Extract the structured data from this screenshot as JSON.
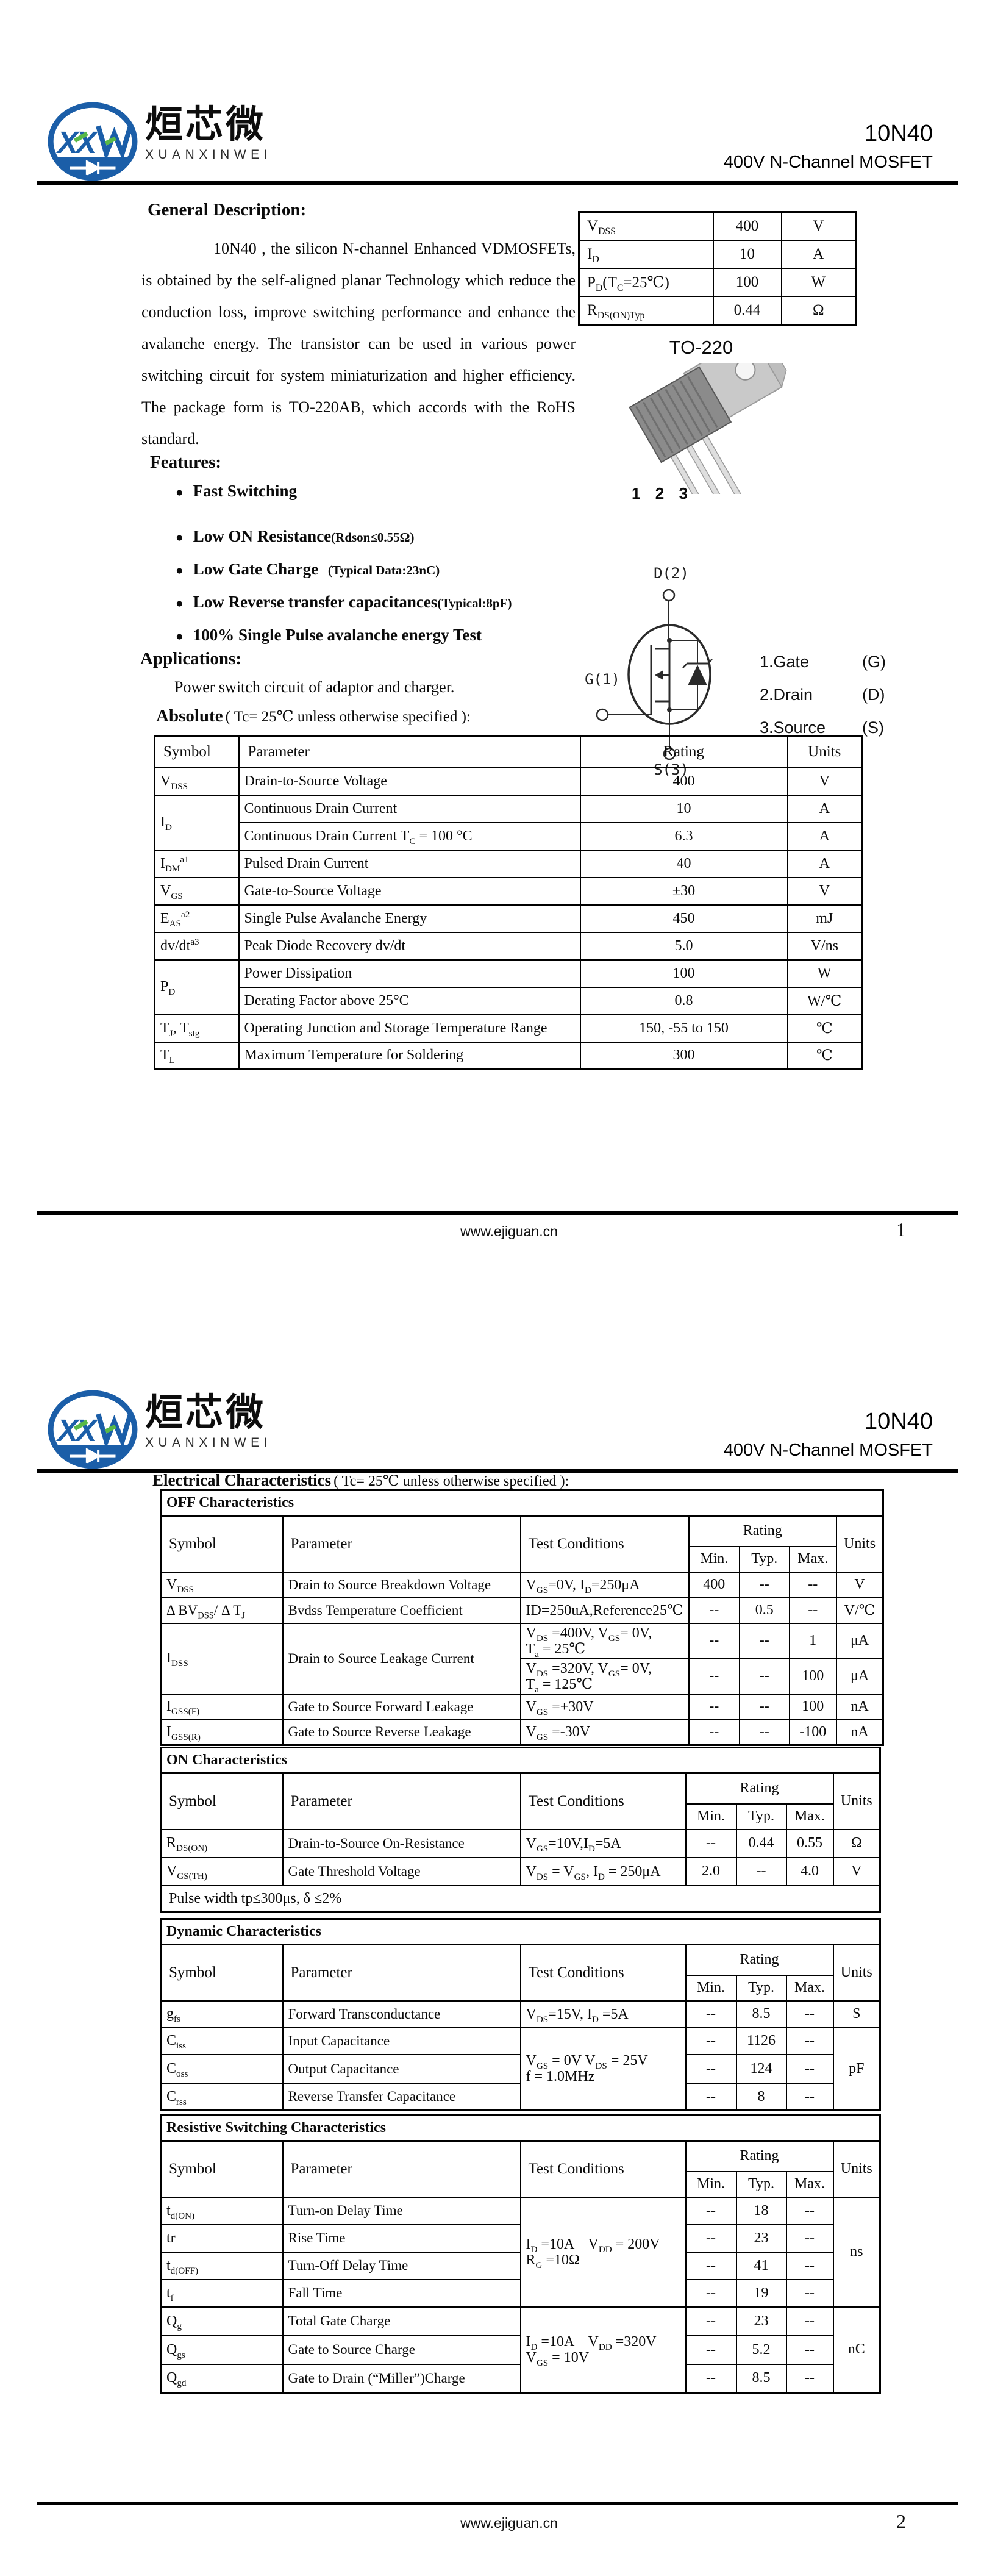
{
  "brand": {
    "cn": "烜芯微",
    "en": "XUANXINWEI",
    "part": "10N40",
    "family": "400V N-Channel MOSFET"
  },
  "footer": {
    "site": "www.ejiguan.cn",
    "page1": "1",
    "page2": "2"
  },
  "page1": {
    "general": {
      "title": "General Description:",
      "body": "10N40 , the silicon N-channel Enhanced VDMOSFETs, is obtained by the self-aligned planar Technology which reduce the conduction loss, improve switching performance and enhance the avalanche energy. The transistor can be used in various power switching circuit for system miniaturization and higher efficiency. The package form is TO-220AB, which accords with the RoHS standard."
    },
    "quick_specs": {
      "rows": [
        {
          "sym": "V~DSS~",
          "val": "400",
          "unit": "V"
        },
        {
          "sym": "I~D~",
          "val": "10",
          "unit": "A"
        },
        {
          "sym": "P~D~(T~C~=25℃)",
          "val": "100",
          "unit": "W"
        },
        {
          "sym": "R~DS(ON)Typ~",
          "val": "0.44",
          "unit": "Ω"
        }
      ]
    },
    "package": {
      "name": "TO-220",
      "pin1": "1",
      "pin2": "2",
      "pin3": "3"
    },
    "features": {
      "title": "Features:",
      "bullet": "●",
      "items": [
        {
          "text": "Fast Switching",
          "note": ""
        },
        {
          "text": "Low ON Resistance",
          "note": "(Rdson≤0.55Ω)"
        },
        {
          "text": "Low Gate Charge",
          "note": "   (Typical Data:23nC)"
        },
        {
          "text": "Low Reverse transfer capacitances",
          "note": "(Typical:8pF)"
        },
        {
          "text": "100% Single Pulse avalanche energy Test",
          "note": ""
        }
      ]
    },
    "applications": {
      "title": "Applications:",
      "body": "Power switch circuit of adaptor and charger."
    },
    "pinout": {
      "d": "D(2)",
      "g": "G(1)",
      "s": "S(3)",
      "legend": [
        {
          "n": "1.Gate",
          "p": "(G)"
        },
        {
          "n": "2.Drain",
          "p": "(D)"
        },
        {
          "n": "3.Source",
          "p": "(S)"
        }
      ]
    },
    "absolute": {
      "prefix": "Absolute",
      "cond": "( Tc= 25℃  unless otherwise specified ):",
      "headers": {
        "symbol": "Symbol",
        "parameter": "Parameter",
        "rating": "Rating",
        "units": "Units"
      },
      "vdss": {
        "s": "V~DSS~",
        "p": "Drain-to-Source Voltage",
        "r": "400",
        "u": "V"
      },
      "id_sym": "I~D~",
      "id1": {
        "p": "Continuous Drain Current",
        "r": "10",
        "u": "A"
      },
      "id2": {
        "p": "Continuous Drain Current T~C~ = 100 °C",
        "r": "6.3",
        "u": "A"
      },
      "idm": {
        "s": "I~DM~^a1^",
        "p": "Pulsed Drain Current",
        "r": "40",
        "u": "A"
      },
      "vgs": {
        "s": "V~GS~",
        "p": "Gate-to-Source Voltage",
        "r": "±30",
        "u": "V"
      },
      "eas": {
        "s": "E~AS~^a2^",
        "p": "Single Pulse Avalanche Energy",
        "r": "450",
        "u": "mJ"
      },
      "dvdt": {
        "s": "dv/dt^a3^",
        "p": "Peak Diode Recovery dv/dt",
        "r": "5.0",
        "u": "V/ns"
      },
      "pd_sym": "P~D~",
      "pd1": {
        "p": "Power Dissipation",
        "r": "100",
        "u": "W"
      },
      "pd2": {
        "p": "Derating Factor above 25°C",
        "r": "0.8",
        "u": "W/℃"
      },
      "tj": {
        "s": "T~J~,  T~stg~",
        "p": "Operating Junction and Storage Temperature Range",
        "r": "150,  -55 to 150",
        "u": "℃"
      },
      "tl": {
        "s": "T~L~",
        "p": "Maximum Temperature for Soldering",
        "r": "300",
        "u": "℃"
      }
    }
  },
  "page2": {
    "elec": {
      "prefix": "Electrical Characteristics",
      "cond": "( Tc= 25℃  unless otherwise specified ):"
    },
    "cols": {
      "symbol": "Symbol",
      "parameter": "Parameter",
      "test": "Test Conditions",
      "rating": "Rating",
      "min": "Min.",
      "typ": "Typ.",
      "max": "Max.",
      "units": "Units"
    },
    "off": {
      "title": "OFF Characteristics",
      "vdss": {
        "s": "V~DSS~",
        "p": "Drain to Source Breakdown Voltage",
        "tc": "V~GS~=0V, I~D~=250μA",
        "min": "400",
        "typ": "--",
        "max": "--",
        "u": "V"
      },
      "dbv": {
        "s": "Δ BV~DSS~/ Δ T~J~",
        "p": "Bvdss Temperature Coefficient",
        "tc": "ID=250uA,Reference25℃",
        "min": "--",
        "typ": "0.5",
        "max": "--",
        "u": "V/℃"
      },
      "idss": {
        "s": "I~DSS~",
        "p": "Drain to Source Leakage Current",
        "tc1": "V~DS~ =400V, V~GS~= 0V,\nT~a~ = 25℃",
        "min1": "--",
        "typ1": "--",
        "max1": "1",
        "u1": "μA",
        "tc2": "V~DS~ =320V, V~GS~= 0V,\nT~a~ = 125℃",
        "min2": "--",
        "typ2": "--",
        "max2": "100",
        "u2": "μA"
      },
      "igssf": {
        "s": "I~GSS(F)~",
        "p": "Gate to Source Forward Leakage",
        "tc": "V~GS~ =+30V",
        "min": "--",
        "typ": "--",
        "max": "100",
        "u": "nA"
      },
      "igssr": {
        "s": "I~GSS(R)~",
        "p": "Gate to Source Reverse Leakage",
        "tc": "V~GS~ =-30V",
        "min": "--",
        "typ": "--",
        "max": "-100",
        "u": "nA"
      }
    },
    "on": {
      "title": "ON Characteristics",
      "rdson": {
        "s": "R~DS(ON)~",
        "p": "Drain-to-Source On-Resistance",
        "tc": "V~GS~=10V,I~D~=5A",
        "min": "--",
        "typ": "0.44",
        "max": "0.55",
        "u": "Ω"
      },
      "vgsth": {
        "s": "V~GS(TH)~",
        "p": "Gate Threshold Voltage",
        "tc": "V~DS~ = V~GS~, I~D~ = 250μA",
        "min": "2.0",
        "typ": "--",
        "max": "4.0",
        "u": "V"
      },
      "note": "Pulse width tp≤300μs, δ ≤2%"
    },
    "dyn": {
      "title": "Dynamic Characteristics",
      "gfs": {
        "s": "g~fs~",
        "p": "Forward Transconductance",
        "tc": "V~DS~=15V, I~D~ =5A",
        "min": "--",
        "typ": "8.5",
        "max": "--",
        "u": "S"
      },
      "shared_tc": "V~GS~ = 0V V~DS~ = 25V\nf = 1.0MHz",
      "cap_unit": "pF",
      "ciss": {
        "s": "C~iss~",
        "p": "Input Capacitance",
        "min": "--",
        "typ": "1126",
        "max": "--"
      },
      "coss": {
        "s": "C~oss~",
        "p": "Output Capacitance",
        "min": "--",
        "typ": "124",
        "max": "--"
      },
      "crss": {
        "s": "C~rss~",
        "p": "Reverse Transfer Capacitance",
        "min": "--",
        "typ": "8",
        "max": "--"
      }
    },
    "sw": {
      "title": "Resistive Switching Characteristics",
      "timing_tc": "I~D~ =10A    V~DD~ = 200V\nR~G~ =10Ω",
      "timing_unit": "ns",
      "tdon": {
        "s": "t~d(ON)~",
        "p": "Turn-on Delay Time",
        "min": "--",
        "typ": "18",
        "max": "--"
      },
      "tr": {
        "s": "tr",
        "p": "Rise Time",
        "min": "--",
        "typ": "23",
        "max": "--"
      },
      "tdoff": {
        "s": "t~d(OFF)~",
        "p": "Turn-Off Delay Time",
        "min": "--",
        "typ": "41",
        "max": "--"
      },
      "tf": {
        "s": "t~f~",
        "p": "Fall Time",
        "min": "--",
        "typ": "19",
        "max": "--"
      },
      "charge_tc": "I~D~ =10A    V~DD~ =320V\nV~GS~ = 10V",
      "charge_unit": "nC",
      "qg": {
        "s": "Q~g~",
        "p": "Total Gate Charge",
        "min": "--",
        "typ": "23",
        "max": "--"
      },
      "qgs": {
        "s": "Q~gs~",
        "p": "Gate to Source Charge",
        "min": "--",
        "typ": "5.2",
        "max": "--"
      },
      "qgd": {
        "s": "Q~gd~",
        "p": "Gate to Drain (“Miller”)Charge",
        "min": "--",
        "typ": "8.5",
        "max": "--"
      }
    }
  }
}
